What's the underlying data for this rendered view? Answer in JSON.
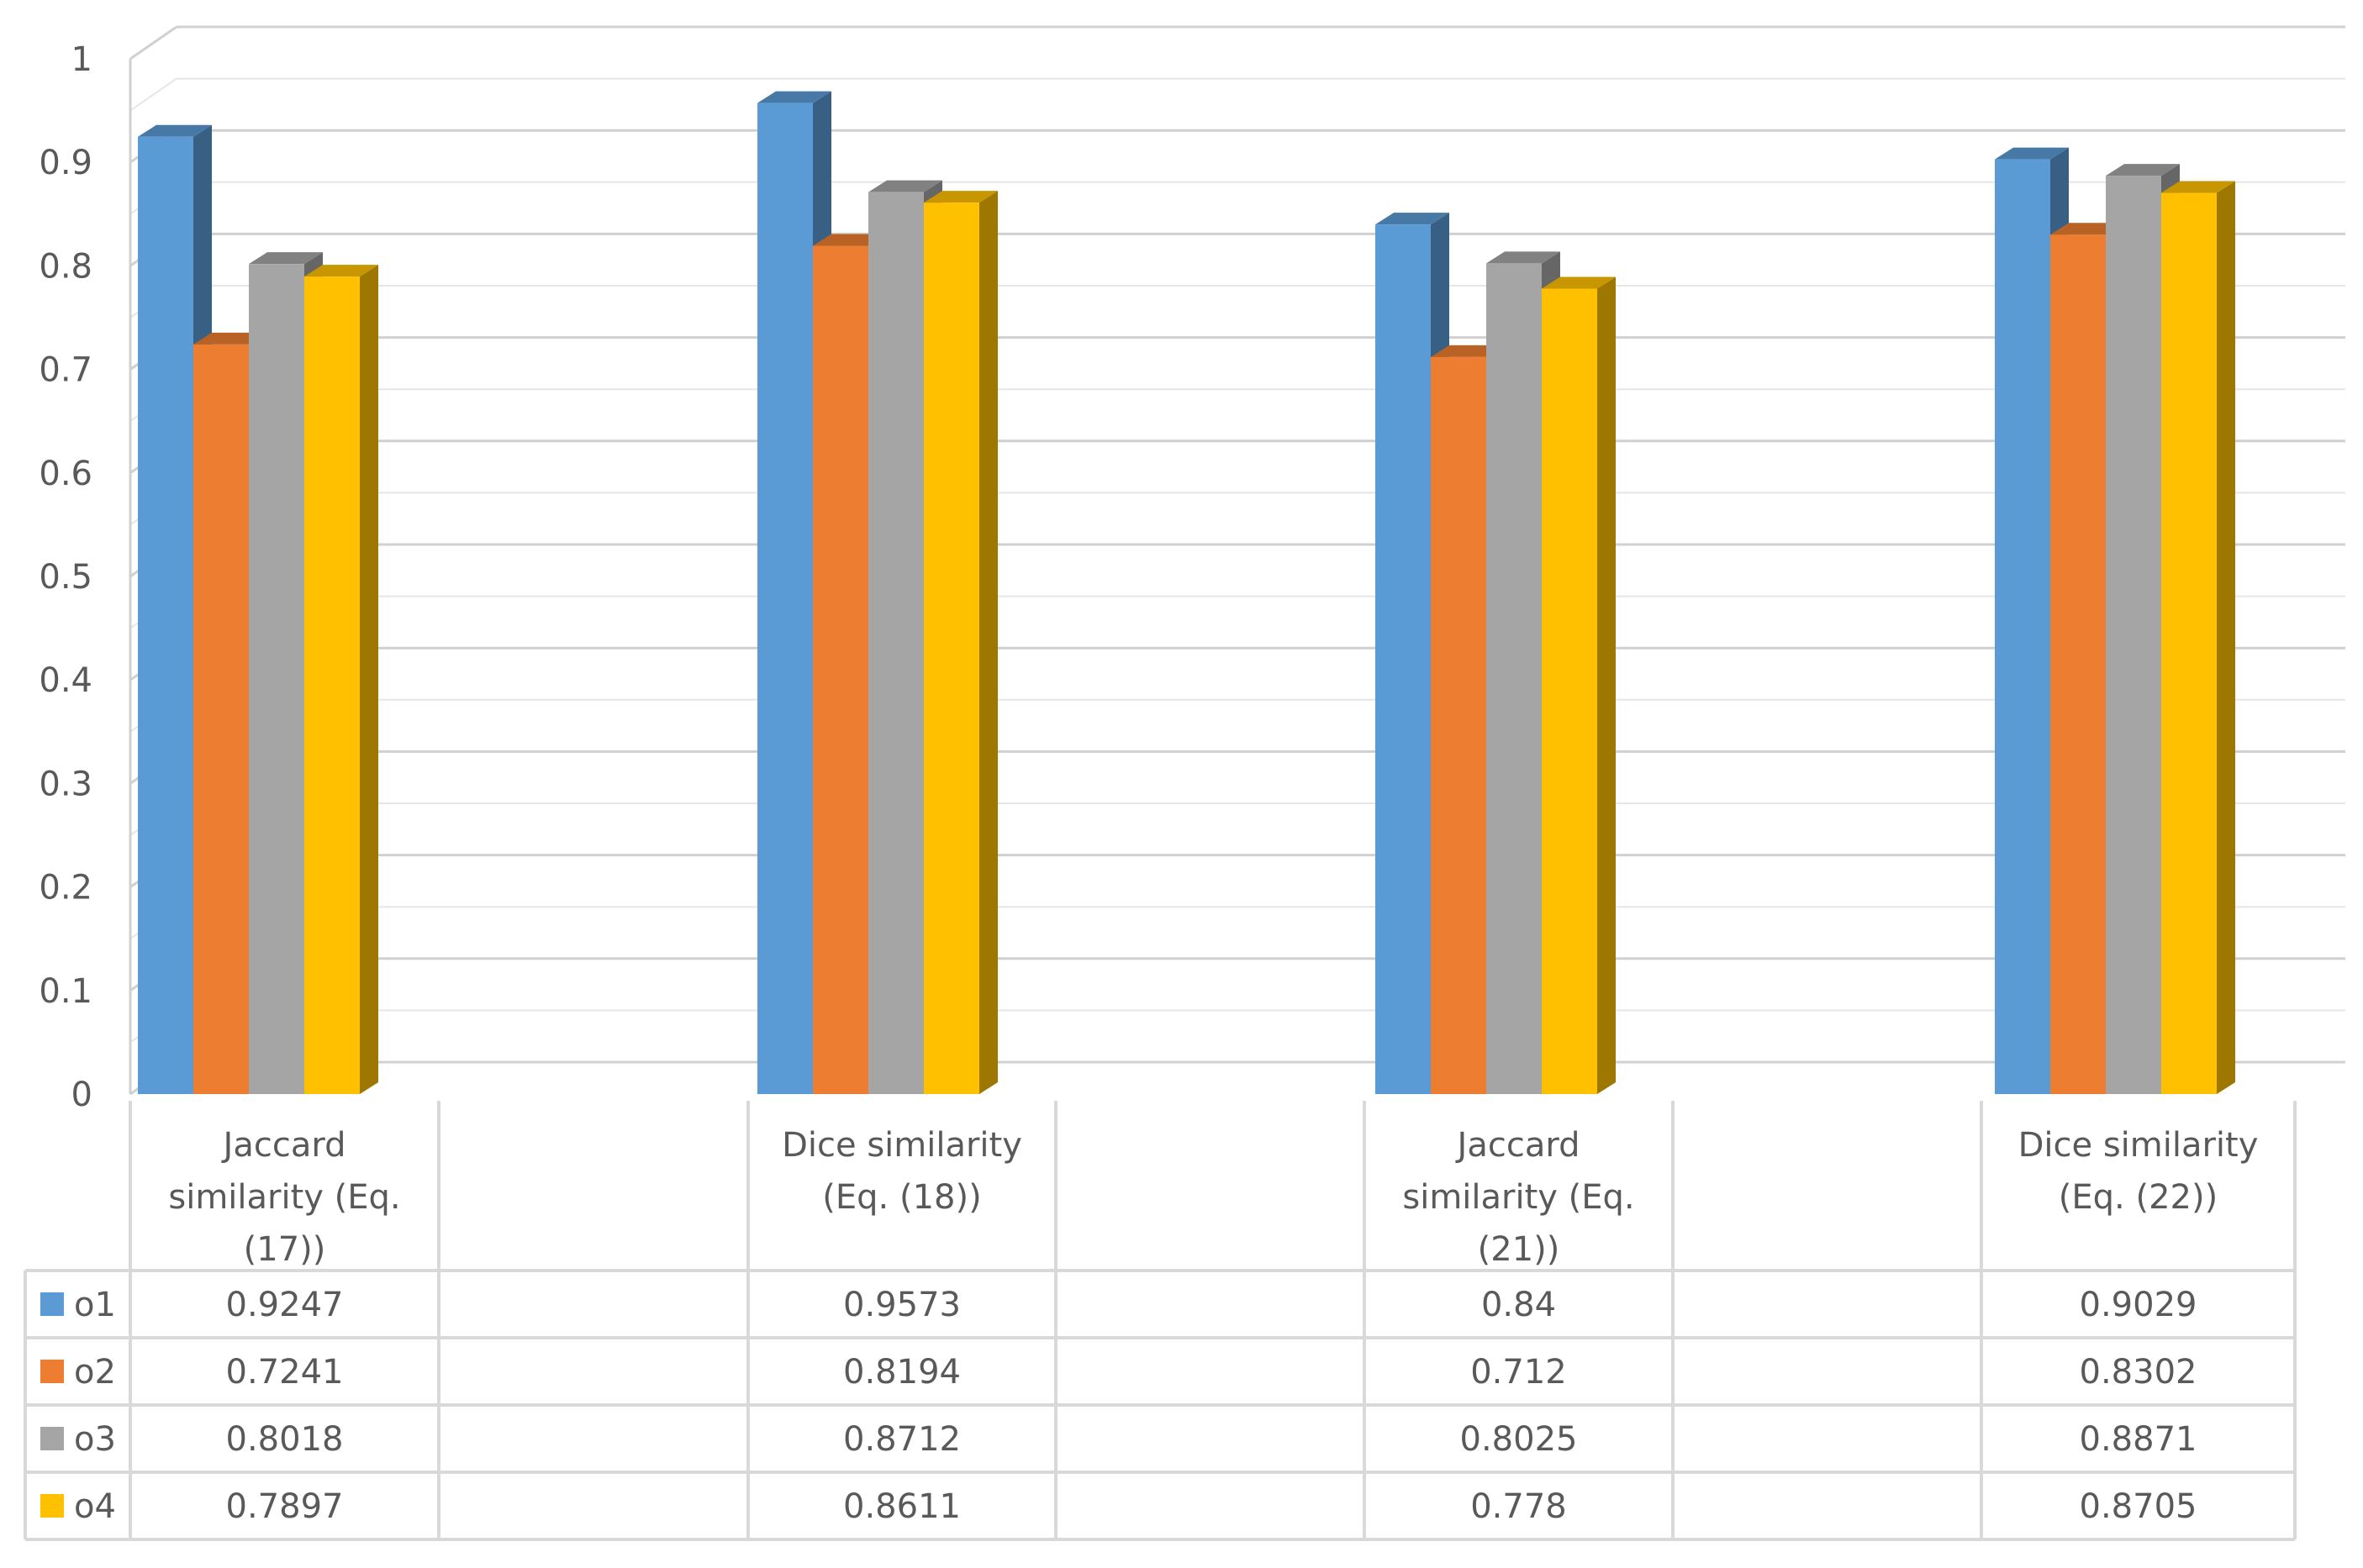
{
  "chart_data": {
    "type": "bar",
    "title": "",
    "xlabel": "",
    "ylabel": "",
    "ylim": [
      0,
      1
    ],
    "yticks": [
      "0",
      "0.1",
      "0.2",
      "0.3",
      "0.4",
      "0.5",
      "0.6",
      "0.7",
      "0.8",
      "0.9",
      "1"
    ],
    "grid": true,
    "style": "3d-clustered-column-with-data-table",
    "categories": [
      [
        "Jaccard",
        "similarity (Eq.",
        "(17))"
      ],
      [
        "Dice similarity",
        "(Eq. (18))"
      ],
      [
        "Jaccard",
        "similarity (Eq.",
        "(21))"
      ],
      [
        "Dice similarity",
        "(Eq. (22))"
      ]
    ],
    "series": [
      {
        "name": "o1",
        "color": "#5B9BD5",
        "values": [
          0.9247,
          0.9573,
          0.84,
          0.9029
        ],
        "labels": [
          "0.9247",
          "0.9573",
          "0.84",
          "0.9029"
        ]
      },
      {
        "name": "o2",
        "color": "#ED7D31",
        "values": [
          0.7241,
          0.8194,
          0.712,
          0.8302
        ],
        "labels": [
          "0.7241",
          "0.8194",
          "0.712",
          "0.8302"
        ]
      },
      {
        "name": "o3",
        "color": "#A5A5A5",
        "values": [
          0.8018,
          0.8712,
          0.8025,
          0.8871
        ],
        "labels": [
          "0.8018",
          "0.8712",
          "0.8025",
          "0.8871"
        ]
      },
      {
        "name": "o4",
        "color": "#FFC000",
        "values": [
          0.7897,
          0.8611,
          0.778,
          0.8705
        ],
        "labels": [
          "0.7897",
          "0.8611",
          "0.778",
          "0.8705"
        ]
      }
    ]
  }
}
